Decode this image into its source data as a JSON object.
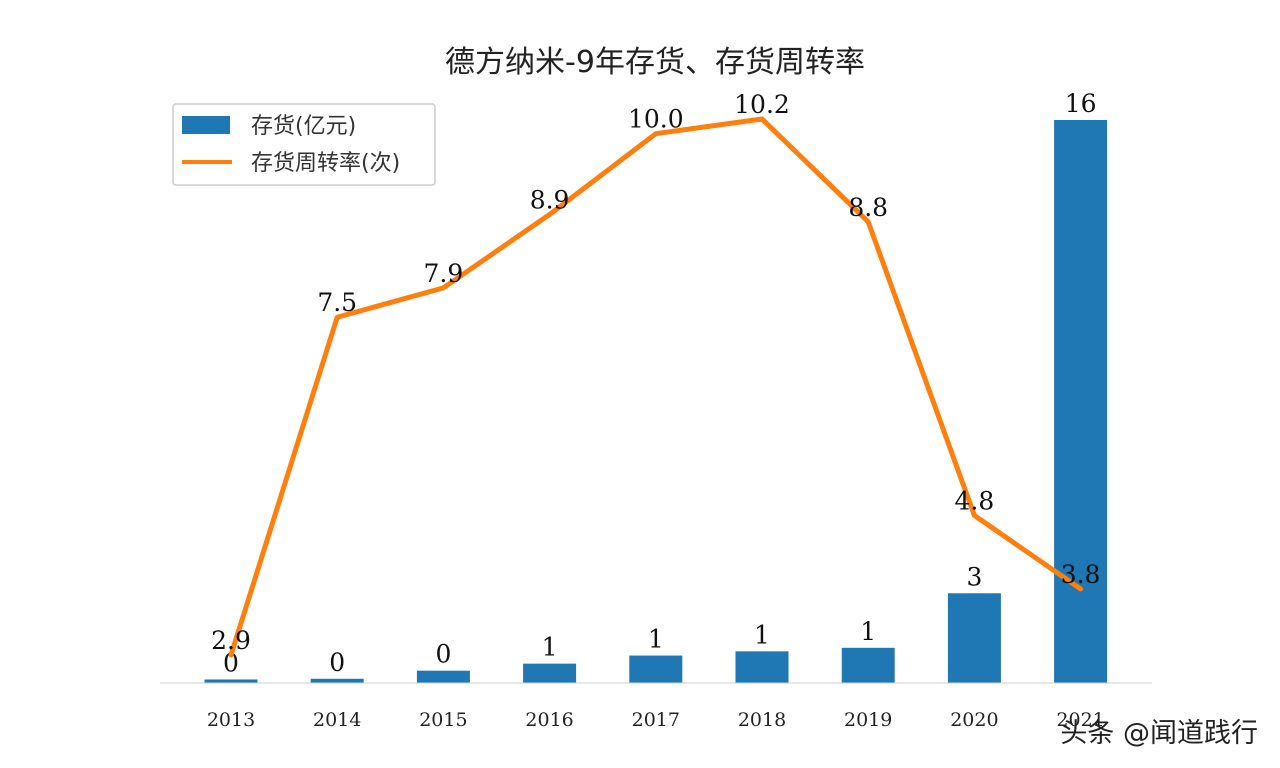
{
  "chart_data": {
    "type": "bar",
    "title": "德方纳米-9年存货、存货周转率",
    "categories": [
      "2013",
      "2014",
      "2015",
      "2016",
      "2017",
      "2018",
      "2019",
      "2020",
      "2021"
    ],
    "series": [
      {
        "name": "存货(亿元)",
        "type": "bar",
        "color": "#1f77b4",
        "values": [
          0.1,
          0.12,
          0.35,
          0.55,
          0.78,
          0.9,
          1.0,
          2.55,
          16.0
        ],
        "labels": [
          "0",
          "0",
          "0",
          "1",
          "1",
          "1",
          "1",
          "3",
          "16"
        ]
      },
      {
        "name": "存货周转率(次)",
        "type": "line",
        "color": "#ff7f0e",
        "values": [
          2.9,
          7.5,
          7.9,
          8.9,
          10.0,
          10.2,
          8.8,
          4.8,
          3.8
        ],
        "labels": [
          "2.9",
          "7.5",
          "7.9",
          "8.9",
          "10.0",
          "10.2",
          "8.8",
          "4.8",
          "3.8"
        ]
      }
    ],
    "xlabel": "",
    "ylabel": "",
    "grid": false,
    "legend": "top-left"
  },
  "watermark": "头条 @闻道践行"
}
